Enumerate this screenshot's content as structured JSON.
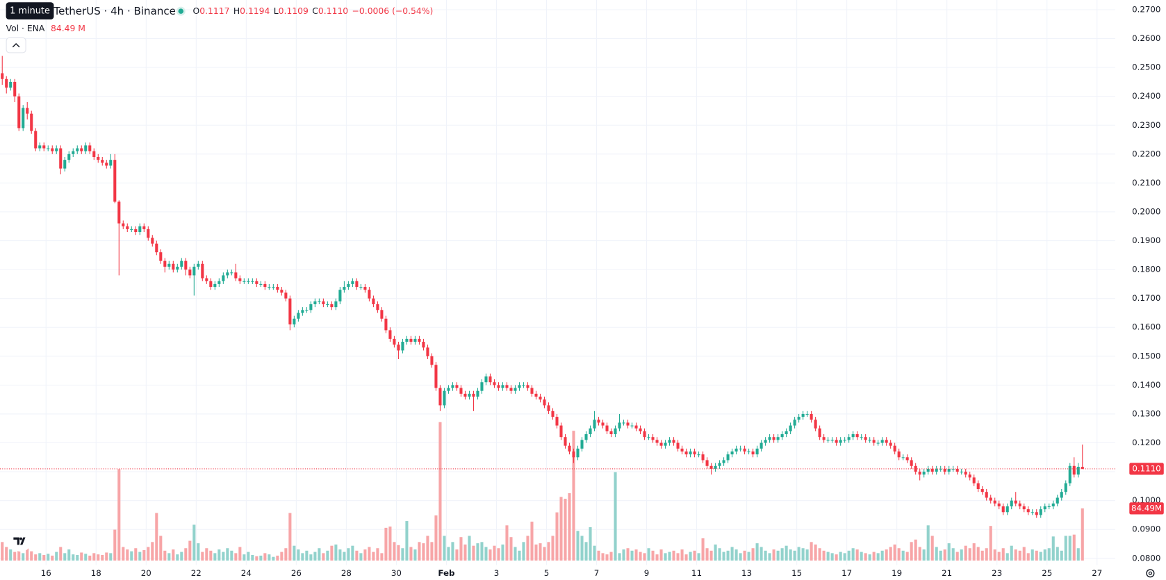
{
  "chart_data": {
    "type": "candlestick",
    "tooltip": "1 minute",
    "title": "TetherUS · 4h · Binance",
    "legend": [
      {
        "label": "O",
        "value": "0.1117"
      },
      {
        "label": "H",
        "value": "0.1194"
      },
      {
        "label": "L",
        "value": "0.1109"
      },
      {
        "label": "C",
        "value": "0.1110"
      }
    ],
    "change": "−0.0006 (−0.54%)",
    "volume_title": "Vol · ENA",
    "volume_value": "84.49 M",
    "up_color": "#22ab94",
    "down_color": "#f23645",
    "volume_up_color": "#92d2cc",
    "volume_down_color": "#f7a5a7",
    "grid": true,
    "open": [
      0.248,
      0.246,
      0.243,
      0.245,
      0.24,
      0.229,
      0.236,
      0.234,
      0.228,
      0.222,
      0.223,
      0.222,
      0.222,
      0.221,
      0.222,
      0.215,
      0.218,
      0.22,
      0.221,
      0.222,
      0.221,
      0.223,
      0.221,
      0.219,
      0.218,
      0.217,
      0.216,
      0.218,
      0.2035,
      0.196,
      0.195,
      0.194,
      0.194,
      0.193,
      0.195,
      0.194,
      0.191,
      0.189,
      0.186,
      0.183,
      0.181,
      0.182,
      0.18,
      0.181,
      0.183,
      0.18,
      0.178,
      0.181,
      0.182,
      0.177,
      0.176,
      0.174,
      0.175,
      0.176,
      0.178,
      0.179,
      0.179,
      0.177,
      0.176,
      0.176,
      0.176,
      0.176,
      0.175,
      0.175,
      0.174,
      0.174,
      0.174,
      0.173,
      0.172,
      0.17,
      0.161,
      0.163,
      0.165,
      0.166,
      0.166,
      0.168,
      0.169,
      0.169,
      0.168,
      0.168,
      0.167,
      0.169,
      0.173,
      0.174,
      0.175,
      0.176,
      0.174,
      0.174,
      0.173,
      0.17,
      0.168,
      0.166,
      0.163,
      0.159,
      0.156,
      0.154,
      0.152,
      0.155,
      0.156,
      0.155,
      0.156,
      0.155,
      0.153,
      0.15,
      0.147,
      0.139,
      0.133,
      0.138,
      0.139,
      0.14,
      0.139,
      0.137,
      0.136,
      0.137,
      0.136,
      0.138,
      0.141,
      0.143,
      0.141,
      0.14,
      0.139,
      0.14,
      0.139,
      0.138,
      0.139,
      0.14,
      0.14,
      0.139,
      0.137,
      0.136,
      0.135,
      0.133,
      0.131,
      0.129,
      0.126,
      0.122,
      0.119,
      0.117,
      0.115,
      0.118,
      0.121,
      0.123,
      0.125,
      0.128,
      0.127,
      0.126,
      0.124,
      0.123,
      0.125,
      0.127,
      0.127,
      0.126,
      0.126,
      0.125,
      0.124,
      0.122,
      0.122,
      0.121,
      0.12,
      0.119,
      0.12,
      0.121,
      0.12,
      0.118,
      0.117,
      0.116,
      0.117,
      0.116,
      0.116,
      0.114,
      0.112,
      0.111,
      0.112,
      0.113,
      0.114,
      0.116,
      0.117,
      0.118,
      0.118,
      0.117,
      0.117,
      0.116,
      0.118,
      0.12,
      0.121,
      0.122,
      0.121,
      0.122,
      0.123,
      0.124,
      0.126,
      0.128,
      0.129,
      0.13,
      0.13,
      0.128,
      0.125,
      0.122,
      0.121,
      0.121,
      0.121,
      0.12,
      0.121,
      0.121,
      0.122,
      0.123,
      0.122,
      0.122,
      0.121,
      0.121,
      0.12,
      0.12,
      0.121,
      0.12,
      0.119,
      0.117,
      0.115,
      0.115,
      0.114,
      0.112,
      0.11,
      0.109,
      0.11,
      0.111,
      0.11,
      0.111,
      0.111,
      0.11,
      0.111,
      0.111,
      0.11,
      0.11,
      0.109,
      0.108,
      0.106,
      0.104,
      0.103,
      0.101,
      0.1,
      0.099,
      0.098,
      0.096,
      0.098,
      0.1,
      0.099,
      0.098,
      0.097,
      0.096,
      0.096,
      0.095,
      0.097,
      0.098,
      0.098,
      0.099,
      0.101,
      0.103,
      0.106,
      0.112,
      0.109,
      0.1117
    ],
    "high": [
      0.254,
      0.247,
      0.246,
      0.246,
      0.241,
      0.237,
      0.238,
      0.235,
      0.229,
      0.224,
      0.224,
      0.223,
      0.223,
      0.223,
      0.223,
      0.219,
      0.221,
      0.222,
      0.223,
      0.223,
      0.224,
      0.224,
      0.222,
      0.22,
      0.219,
      0.218,
      0.22,
      0.22,
      0.204,
      0.197,
      0.196,
      0.195,
      0.195,
      0.196,
      0.196,
      0.195,
      0.192,
      0.19,
      0.187,
      0.184,
      0.183,
      0.183,
      0.182,
      0.184,
      0.184,
      0.181,
      0.182,
      0.183,
      0.183,
      0.178,
      0.177,
      0.176,
      0.177,
      0.179,
      0.18,
      0.18,
      0.182,
      0.178,
      0.177,
      0.177,
      0.177,
      0.177,
      0.176,
      0.176,
      0.175,
      0.175,
      0.175,
      0.174,
      0.173,
      0.171,
      0.164,
      0.166,
      0.167,
      0.167,
      0.169,
      0.17,
      0.17,
      0.17,
      0.169,
      0.169,
      0.17,
      0.174,
      0.176,
      0.176,
      0.177,
      0.177,
      0.175,
      0.175,
      0.174,
      0.171,
      0.169,
      0.167,
      0.164,
      0.16,
      0.157,
      0.155,
      0.156,
      0.157,
      0.157,
      0.157,
      0.157,
      0.156,
      0.154,
      0.151,
      0.148,
      0.14,
      0.139,
      0.14,
      0.141,
      0.141,
      0.14,
      0.138,
      0.138,
      0.138,
      0.139,
      0.142,
      0.144,
      0.144,
      0.142,
      0.141,
      0.141,
      0.141,
      0.14,
      0.14,
      0.141,
      0.141,
      0.141,
      0.14,
      0.138,
      0.137,
      0.136,
      0.134,
      0.132,
      0.13,
      0.127,
      0.123,
      0.12,
      0.118,
      0.119,
      0.122,
      0.124,
      0.126,
      0.131,
      0.129,
      0.128,
      0.127,
      0.125,
      0.126,
      0.13,
      0.128,
      0.128,
      0.127,
      0.127,
      0.126,
      0.125,
      0.123,
      0.123,
      0.122,
      0.121,
      0.121,
      0.122,
      0.122,
      0.121,
      0.119,
      0.118,
      0.118,
      0.118,
      0.117,
      0.117,
      0.115,
      0.113,
      0.113,
      0.114,
      0.115,
      0.117,
      0.118,
      0.119,
      0.119,
      0.119,
      0.118,
      0.118,
      0.119,
      0.121,
      0.122,
      0.123,
      0.123,
      0.123,
      0.124,
      0.125,
      0.127,
      0.129,
      0.13,
      0.131,
      0.131,
      0.131,
      0.129,
      0.126,
      0.123,
      0.122,
      0.122,
      0.122,
      0.122,
      0.122,
      0.123,
      0.124,
      0.124,
      0.123,
      0.123,
      0.122,
      0.122,
      0.121,
      0.122,
      0.122,
      0.121,
      0.12,
      0.118,
      0.116,
      0.116,
      0.115,
      0.113,
      0.111,
      0.111,
      0.112,
      0.112,
      0.112,
      0.112,
      0.112,
      0.112,
      0.112,
      0.112,
      0.111,
      0.111,
      0.11,
      0.109,
      0.107,
      0.105,
      0.104,
      0.102,
      0.101,
      0.1,
      0.099,
      0.099,
      0.101,
      0.103,
      0.1,
      0.099,
      0.098,
      0.097,
      0.097,
      0.098,
      0.099,
      0.099,
      0.1,
      0.102,
      0.104,
      0.107,
      0.113,
      0.115,
      0.113,
      0.1194
    ],
    "low": [
      0.244,
      0.241,
      0.242,
      0.238,
      0.228,
      0.228,
      0.232,
      0.227,
      0.221,
      0.221,
      0.221,
      0.221,
      0.22,
      0.22,
      0.213,
      0.214,
      0.217,
      0.219,
      0.22,
      0.22,
      0.22,
      0.22,
      0.218,
      0.217,
      0.216,
      0.215,
      0.215,
      0.203,
      0.178,
      0.194,
      0.193,
      0.193,
      0.192,
      0.192,
      0.193,
      0.19,
      0.188,
      0.185,
      0.182,
      0.179,
      0.18,
      0.179,
      0.179,
      0.18,
      0.178,
      0.177,
      0.171,
      0.18,
      0.176,
      0.175,
      0.173,
      0.173,
      0.174,
      0.175,
      0.177,
      0.178,
      0.176,
      0.175,
      0.175,
      0.175,
      0.175,
      0.174,
      0.174,
      0.173,
      0.173,
      0.173,
      0.172,
      0.171,
      0.169,
      0.159,
      0.16,
      0.162,
      0.164,
      0.165,
      0.165,
      0.167,
      0.168,
      0.167,
      0.167,
      0.166,
      0.166,
      0.168,
      0.172,
      0.173,
      0.174,
      0.173,
      0.173,
      0.172,
      0.169,
      0.167,
      0.165,
      0.162,
      0.158,
      0.155,
      0.153,
      0.149,
      0.151,
      0.154,
      0.154,
      0.154,
      0.154,
      0.152,
      0.149,
      0.146,
      0.138,
      0.131,
      0.132,
      0.137,
      0.138,
      0.138,
      0.136,
      0.135,
      0.135,
      0.131,
      0.135,
      0.137,
      0.14,
      0.14,
      0.139,
      0.138,
      0.138,
      0.138,
      0.137,
      0.137,
      0.138,
      0.139,
      0.138,
      0.136,
      0.135,
      0.134,
      0.132,
      0.13,
      0.128,
      0.125,
      0.121,
      0.118,
      0.116,
      0.113,
      0.114,
      0.117,
      0.12,
      0.122,
      0.124,
      0.126,
      0.125,
      0.123,
      0.122,
      0.122,
      0.124,
      0.126,
      0.125,
      0.125,
      0.124,
      0.123,
      0.121,
      0.121,
      0.12,
      0.119,
      0.118,
      0.118,
      0.119,
      0.119,
      0.117,
      0.116,
      0.115,
      0.115,
      0.115,
      0.115,
      0.113,
      0.111,
      0.109,
      0.11,
      0.111,
      0.112,
      0.113,
      0.115,
      0.116,
      0.117,
      0.116,
      0.116,
      0.115,
      0.115,
      0.117,
      0.119,
      0.12,
      0.12,
      0.12,
      0.121,
      0.122,
      0.123,
      0.125,
      0.127,
      0.128,
      0.129,
      0.127,
      0.124,
      0.121,
      0.12,
      0.12,
      0.12,
      0.119,
      0.119,
      0.12,
      0.12,
      0.121,
      0.121,
      0.121,
      0.12,
      0.12,
      0.119,
      0.119,
      0.119,
      0.119,
      0.118,
      0.116,
      0.114,
      0.114,
      0.113,
      0.111,
      0.109,
      0.107,
      0.108,
      0.109,
      0.109,
      0.109,
      0.11,
      0.109,
      0.109,
      0.11,
      0.109,
      0.109,
      0.108,
      0.107,
      0.105,
      0.103,
      0.102,
      0.1,
      0.099,
      0.098,
      0.097,
      0.095,
      0.095,
      0.097,
      0.098,
      0.097,
      0.096,
      0.095,
      0.095,
      0.094,
      0.094,
      0.096,
      0.097,
      0.097,
      0.098,
      0.1,
      0.102,
      0.105,
      0.108,
      0.108,
      0.1109
    ],
    "close": [
      0.246,
      0.243,
      0.245,
      0.24,
      0.229,
      0.236,
      0.234,
      0.228,
      0.222,
      0.223,
      0.222,
      0.222,
      0.221,
      0.222,
      0.215,
      0.218,
      0.22,
      0.221,
      0.222,
      0.221,
      0.223,
      0.221,
      0.219,
      0.218,
      0.217,
      0.216,
      0.218,
      0.2035,
      0.196,
      0.195,
      0.194,
      0.194,
      0.193,
      0.195,
      0.194,
      0.191,
      0.189,
      0.186,
      0.183,
      0.181,
      0.182,
      0.18,
      0.181,
      0.183,
      0.18,
      0.178,
      0.181,
      0.182,
      0.177,
      0.176,
      0.174,
      0.175,
      0.176,
      0.178,
      0.179,
      0.179,
      0.177,
      0.176,
      0.176,
      0.176,
      0.176,
      0.175,
      0.175,
      0.174,
      0.174,
      0.174,
      0.173,
      0.172,
      0.17,
      0.161,
      0.163,
      0.165,
      0.166,
      0.166,
      0.168,
      0.169,
      0.169,
      0.168,
      0.168,
      0.167,
      0.169,
      0.173,
      0.174,
      0.175,
      0.176,
      0.174,
      0.174,
      0.173,
      0.17,
      0.168,
      0.166,
      0.163,
      0.159,
      0.156,
      0.154,
      0.152,
      0.155,
      0.156,
      0.155,
      0.156,
      0.155,
      0.153,
      0.15,
      0.147,
      0.139,
      0.133,
      0.138,
      0.139,
      0.14,
      0.139,
      0.137,
      0.136,
      0.137,
      0.136,
      0.138,
      0.141,
      0.143,
      0.141,
      0.14,
      0.139,
      0.14,
      0.139,
      0.138,
      0.139,
      0.14,
      0.14,
      0.139,
      0.137,
      0.136,
      0.135,
      0.133,
      0.131,
      0.129,
      0.126,
      0.122,
      0.119,
      0.117,
      0.115,
      0.118,
      0.121,
      0.123,
      0.125,
      0.128,
      0.127,
      0.126,
      0.124,
      0.123,
      0.125,
      0.127,
      0.127,
      0.126,
      0.126,
      0.125,
      0.124,
      0.122,
      0.122,
      0.121,
      0.12,
      0.119,
      0.12,
      0.121,
      0.12,
      0.118,
      0.117,
      0.116,
      0.117,
      0.116,
      0.116,
      0.114,
      0.112,
      0.111,
      0.112,
      0.113,
      0.114,
      0.116,
      0.117,
      0.118,
      0.118,
      0.117,
      0.117,
      0.116,
      0.118,
      0.12,
      0.121,
      0.122,
      0.121,
      0.122,
      0.123,
      0.124,
      0.126,
      0.128,
      0.129,
      0.13,
      0.13,
      0.128,
      0.125,
      0.122,
      0.121,
      0.121,
      0.121,
      0.12,
      0.121,
      0.121,
      0.122,
      0.123,
      0.122,
      0.122,
      0.121,
      0.121,
      0.12,
      0.12,
      0.121,
      0.12,
      0.119,
      0.117,
      0.115,
      0.115,
      0.114,
      0.112,
      0.11,
      0.109,
      0.11,
      0.111,
      0.11,
      0.111,
      0.111,
      0.11,
      0.111,
      0.111,
      0.11,
      0.11,
      0.109,
      0.108,
      0.106,
      0.104,
      0.103,
      0.101,
      0.1,
      0.099,
      0.098,
      0.096,
      0.098,
      0.1,
      0.099,
      0.098,
      0.097,
      0.096,
      0.096,
      0.095,
      0.097,
      0.098,
      0.098,
      0.099,
      0.101,
      0.103,
      0.106,
      0.112,
      0.109,
      0.1117,
      0.111
    ],
    "volume": [
      30,
      22,
      18,
      14,
      25,
      12,
      20,
      15,
      10,
      12,
      9,
      11,
      8,
      14,
      22,
      12,
      18,
      10,
      9,
      13,
      11,
      8,
      12,
      10,
      9,
      13,
      12,
      50,
      148,
      22,
      18,
      15,
      20,
      14,
      17,
      22,
      30,
      77,
      40,
      16,
      12,
      18,
      10,
      14,
      20,
      32,
      58,
      28,
      14,
      20,
      16,
      12,
      18,
      14,
      20,
      16,
      12,
      22,
      10,
      14,
      9,
      7,
      8,
      12,
      10,
      6,
      8,
      14,
      20,
      77,
      24,
      18,
      12,
      16,
      10,
      14,
      20,
      12,
      16,
      24,
      26,
      18,
      14,
      20,
      24,
      16,
      12,
      18,
      22,
      14,
      20,
      12,
      53,
      55,
      30,
      25,
      20,
      64,
      22,
      18,
      30,
      28,
      40,
      30,
      73,
      224,
      40,
      22,
      30,
      18,
      38,
      26,
      40,
      24,
      28,
      30,
      22,
      18,
      24,
      20,
      26,
      57,
      38,
      22,
      16,
      30,
      40,
      63,
      26,
      28,
      22,
      30,
      40,
      78,
      103,
      100,
      109,
      210,
      48,
      40,
      30,
      54,
      24,
      16,
      12,
      10,
      14,
      143,
      12,
      18,
      20,
      16,
      18,
      14,
      12,
      20,
      16,
      10,
      18,
      12,
      14,
      16,
      12,
      18,
      10,
      14,
      16,
      12,
      36,
      20,
      16,
      26,
      20,
      14,
      16,
      22,
      18,
      12,
      16,
      14,
      20,
      28,
      22,
      16,
      12,
      18,
      16,
      20,
      24,
      18,
      16,
      22,
      20,
      18,
      30,
      26,
      20,
      16,
      14,
      12,
      10,
      14,
      12,
      16,
      20,
      18,
      14,
      12,
      10,
      14,
      12,
      16,
      18,
      22,
      26,
      20,
      16,
      14,
      30,
      34,
      22,
      18,
      57,
      40,
      22,
      16,
      18,
      28,
      20,
      14,
      18,
      24,
      20,
      28,
      22,
      16,
      20,
      56,
      18,
      14,
      20,
      12,
      24,
      18,
      16,
      22,
      12,
      18,
      16,
      14,
      18,
      20,
      39,
      22,
      16,
      40,
      40,
      42,
      20,
      84.49
    ],
    "ylim": [
      0.08,
      0.27
    ],
    "yticks": [
      {
        "value": 0.27,
        "label": "0.2700"
      },
      {
        "value": 0.26,
        "label": "0.2600"
      },
      {
        "value": 0.25,
        "label": "0.2500"
      },
      {
        "value": 0.24,
        "label": "0.2400"
      },
      {
        "value": 0.23,
        "label": "0.2300"
      },
      {
        "value": 0.22,
        "label": "0.2200"
      },
      {
        "value": 0.21,
        "label": "0.2100"
      },
      {
        "value": 0.2,
        "label": "0.2000"
      },
      {
        "value": 0.19,
        "label": "0.1900"
      },
      {
        "value": 0.18,
        "label": "0.1800"
      },
      {
        "value": 0.17,
        "label": "0.1700"
      },
      {
        "value": 0.16,
        "label": "0.1600"
      },
      {
        "value": 0.15,
        "label": "0.1500"
      },
      {
        "value": 0.14,
        "label": "0.1400"
      },
      {
        "value": 0.13,
        "label": "0.1300"
      },
      {
        "value": 0.12,
        "label": "0.1200"
      },
      {
        "value": 0.11,
        "label": "0.1100"
      },
      {
        "value": 0.1,
        "label": "0.1000"
      },
      {
        "value": 0.09,
        "label": "0.0900"
      },
      {
        "value": 0.08,
        "label": "0.0800"
      }
    ],
    "vlim": [
      0,
      260
    ],
    "xticks": [
      {
        "value": 11,
        "label": "16"
      },
      {
        "value": 23,
        "label": "18"
      },
      {
        "value": 35,
        "label": "20"
      },
      {
        "value": 47,
        "label": "22"
      },
      {
        "value": 59,
        "label": "24"
      },
      {
        "value": 71,
        "label": "26"
      },
      {
        "value": 83,
        "label": "28"
      },
      {
        "value": 95,
        "label": "30"
      },
      {
        "value": 107,
        "label": "Feb"
      },
      {
        "value": 119,
        "label": "3"
      },
      {
        "value": 131,
        "label": "5"
      },
      {
        "value": 143,
        "label": "7"
      },
      {
        "value": 155,
        "label": "9"
      },
      {
        "value": 167,
        "label": "11"
      },
      {
        "value": 179,
        "label": "13"
      },
      {
        "value": 191,
        "label": "15"
      },
      {
        "value": 203,
        "label": "17"
      },
      {
        "value": 215,
        "label": "19"
      },
      {
        "value": 227,
        "label": "21"
      },
      {
        "value": 239,
        "label": "23"
      },
      {
        "value": 251,
        "label": "25"
      },
      {
        "value": 263,
        "label": "27"
      }
    ],
    "last_price": {
      "value": 0.111,
      "label": "0.1110"
    },
    "last_volume": {
      "value": 84.49,
      "label": "84.49M"
    }
  }
}
